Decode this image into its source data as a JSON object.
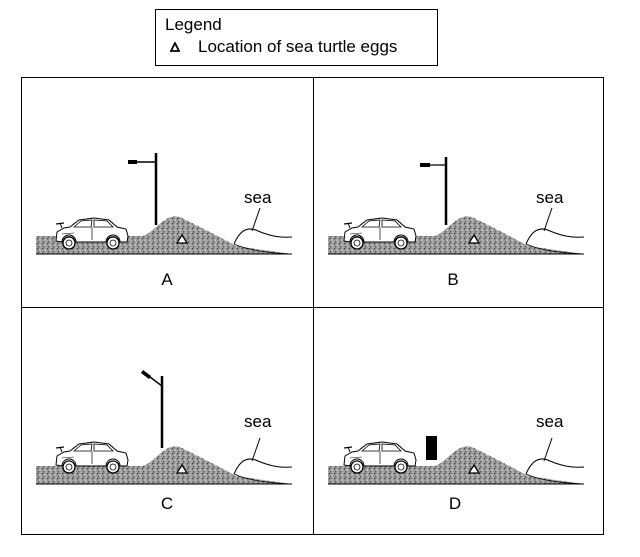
{
  "legend": {
    "title": "Legend",
    "items": [
      {
        "icon": "triangle-icon",
        "label": "Location of sea turtle eggs"
      }
    ]
  },
  "panels": [
    {
      "id": "A",
      "label": "A",
      "sea_label": "sea",
      "light": "pole-light-horizontal"
    },
    {
      "id": "B",
      "label": "B",
      "sea_label": "sea",
      "light": "pole-light-small-horizontal"
    },
    {
      "id": "C",
      "label": "C",
      "sea_label": "sea",
      "light": "pole-light-angled"
    },
    {
      "id": "D",
      "label": "D",
      "sea_label": "sea",
      "light": "low-black-barrier"
    }
  ]
}
